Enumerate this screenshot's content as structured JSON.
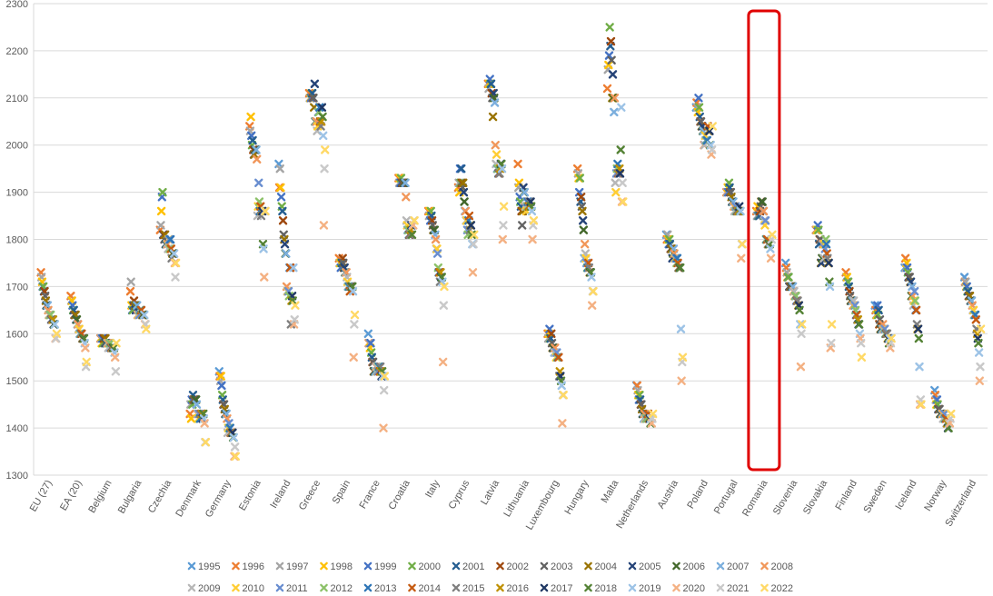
{
  "chart_data": {
    "type": "scatter",
    "marker": "x",
    "title": "",
    "xlabel": "",
    "ylabel": "",
    "ylim": [
      1300,
      2300
    ],
    "yticks": [
      1300,
      1400,
      1500,
      1600,
      1700,
      1800,
      1900,
      2000,
      2100,
      2200,
      2300
    ],
    "grid": true,
    "legend_position": "bottom",
    "highlighted_category": "Romania",
    "highlight_color": "#e00000",
    "categories": [
      "EU (27)",
      "EA (20)",
      "Belgium",
      "Bulgaria",
      "Czechia",
      "Denmark",
      "Germany",
      "Estonia",
      "Ireland",
      "Greece",
      "Spain",
      "France",
      "Croatia",
      "Italy",
      "Cyprus",
      "Latvia",
      "Lithuania",
      "Luxembourg",
      "Hungary",
      "Malta",
      "Netherlands",
      "Austria",
      "Poland",
      "Portugal",
      "Romania",
      "Slovenia",
      "Slovakia",
      "Finland",
      "Sweden",
      "Iceland",
      "Norway",
      "Switzerland"
    ],
    "series": [
      {
        "name": "1995",
        "color": "#5b9bd5",
        "values": [
          null,
          null,
          null,
          null,
          null,
          null,
          1520,
          null,
          1960,
          null,
          null,
          1600,
          null,
          null,
          null,
          null,
          null,
          null,
          null,
          null,
          1490,
          1810,
          2080,
          null,
          null,
          1750,
          null,
          null,
          1660,
          1740,
          1480,
          1720
        ]
      },
      {
        "name": "1996",
        "color": "#ed7d31",
        "values": [
          1730,
          1680,
          1590,
          1690,
          1820,
          1430,
          1510,
          2040,
          1910,
          2110,
          1760,
          1580,
          1930,
          1860,
          1910,
          2130,
          1960,
          1600,
          1950,
          2120,
          1490,
          1800,
          2090,
          1900,
          1860,
          1740,
          1820,
          1730,
          1650,
          1760,
          1470,
          1710
        ]
      },
      {
        "name": "1997",
        "color": "#a5a5a5",
        "values": [
          1720,
          1670,
          1590,
          1710,
          1830,
          1450,
          1500,
          2030,
          1950,
          2100,
          1750,
          1580,
          1920,
          1850,
          1920,
          2120,
          1910,
          1590,
          1940,
          2160,
          1480,
          1810,
          2080,
          1900,
          1850,
          1730,
          1820,
          1720,
          1640,
          1740,
          1460,
          1710
        ]
      },
      {
        "name": "1998",
        "color": "#ffc000",
        "values": [
          1710,
          1670,
          1580,
          1660,
          1860,
          1420,
          1510,
          2060,
          1910,
          2100,
          1750,
          1570,
          1930,
          1860,
          1900,
          2130,
          1920,
          1600,
          1930,
          2170,
          1470,
          1800,
          2070,
          1910,
          1870,
          1720,
          1820,
          1720,
          1640,
          1750,
          1450,
          1700
        ]
      },
      {
        "name": "1999",
        "color": "#4472c4",
        "values": [
          1700,
          1660,
          1590,
          1650,
          1890,
          1460,
          1490,
          2020,
          1890,
          2100,
          1740,
          1580,
          1920,
          1840,
          1950,
          2140,
          1890,
          1610,
          1900,
          2190,
          1460,
          1790,
          2100,
          1900,
          1850,
          1720,
          1830,
          1710,
          1660,
          1740,
          1460,
          1700
        ]
      },
      {
        "name": "2000",
        "color": "#70ad47",
        "values": [
          1700,
          1650,
          1580,
          1650,
          1900,
          1450,
          1470,
          2000,
          1870,
          2110,
          1750,
          1560,
          1930,
          1860,
          1920,
          2130,
          1880,
          1590,
          1930,
          2250,
          1470,
          1800,
          2080,
          1920,
          1850,
          1720,
          1820,
          1710,
          1640,
          1730,
          1450,
          1690
        ]
      },
      {
        "name": "2001",
        "color": "#255e91",
        "values": [
          1690,
          1650,
          1590,
          1660,
          1810,
          1470,
          1460,
          2010,
          1860,
          2110,
          1750,
          1550,
          1920,
          1850,
          1950,
          2130,
          1870,
          1590,
          1880,
          2210,
          1460,
          1790,
          2060,
          1910,
          1850,
          1700,
          1790,
          1700,
          1650,
          1720,
          1440,
          1690
        ]
      },
      {
        "name": "2002",
        "color": "#9e480e",
        "values": [
          1690,
          1640,
          1590,
          1670,
          1810,
          1460,
          1450,
          1990,
          1840,
          2100,
          1760,
          1540,
          1920,
          1840,
          1920,
          2110,
          1860,
          1600,
          1890,
          2220,
          1450,
          1780,
          2050,
          1900,
          1860,
          1700,
          1800,
          1690,
          1620,
          1720,
          1440,
          1680
        ]
      },
      {
        "name": "2003",
        "color": "#636363",
        "values": [
          1680,
          1640,
          1580,
          1660,
          1800,
          1460,
          1450,
          1980,
          1810,
          2100,
          1750,
          1540,
          1920,
          1830,
          1910,
          2100,
          1830,
          1580,
          1870,
          2180,
          1450,
          1780,
          2050,
          1900,
          1870,
          1700,
          1800,
          1680,
          1630,
          1720,
          1440,
          1680
        ]
      },
      {
        "name": "2004",
        "color": "#997300",
        "values": [
          1670,
          1640,
          1590,
          1660,
          1810,
          1460,
          1440,
          1980,
          1800,
          2080,
          1740,
          1520,
          1920,
          1820,
          1920,
          2060,
          1860,
          1570,
          1860,
          2100,
          1440,
          1780,
          2040,
          1890,
          1880,
          1700,
          1750,
          1670,
          1610,
          1710,
          1430,
          1680
        ]
      },
      {
        "name": "2005",
        "color": "#264478",
        "values": [
          1660,
          1630,
          1580,
          1650,
          1790,
          1460,
          1430,
          1990,
          1790,
          2130,
          1740,
          1520,
          1920,
          1820,
          1900,
          2110,
          1910,
          1570,
          1840,
          2150,
          1430,
          1760,
          2040,
          1880,
          1880,
          1700,
          1750,
          1670,
          1610,
          1710,
          1430,
          1670
        ]
      },
      {
        "name": "2006",
        "color": "#43682b",
        "values": [
          1660,
          1630,
          1580,
          1660,
          1790,
          1460,
          1430,
          1990,
          1770,
          2050,
          1730,
          1520,
          1920,
          1820,
          1880,
          2100,
          1900,
          1570,
          1820,
          2100,
          1430,
          1770,
          2030,
          1880,
          1880,
          1700,
          1760,
          1670,
          1610,
          1680,
          1430,
          1670
        ]
      },
      {
        "name": "2007",
        "color": "#7cafdd",
        "values": [
          1660,
          1620,
          1580,
          1660,
          1790,
          1450,
          1430,
          1990,
          1770,
          2050,
          1730,
          1520,
          1920,
          1810,
          1860,
          2090,
          1900,
          1560,
          1760,
          2070,
          1420,
          1780,
          2030,
          1880,
          1860,
          1700,
          1790,
          1670,
          1610,
          1700,
          1430,
          1670
        ]
      },
      {
        "name": "2008",
        "color": "#f1975a",
        "values": [
          1650,
          1620,
          1580,
          1640,
          1790,
          1430,
          1420,
          1970,
          1700,
          2050,
          1730,
          1530,
          1890,
          1800,
          1860,
          2000,
          1870,
          1570,
          1790,
          2100,
          1430,
          1770,
          2000,
          1870,
          1860,
          1690,
          1790,
          1660,
          1620,
          1680,
          1430,
          1660
        ]
      },
      {
        "name": "2009",
        "color": "#b7b7b7",
        "values": [
          1640,
          1610,
          1570,
          1640,
          1780,
          1430,
          1390,
          1850,
          1690,
          2030,
          1720,
          1530,
          1840,
          1780,
          1840,
          1960,
          1870,
          1560,
          1770,
          1920,
          1420,
          1760,
          2000,
          1860,
          1840,
          1690,
          1760,
          1670,
          1610,
          1660,
          1420,
          1650
        ]
      },
      {
        "name": "2010",
        "color": "#ffcd33",
        "values": [
          1640,
          1610,
          1580,
          1640,
          1800,
          1420,
          1400,
          1870,
          1690,
          2040,
          1710,
          1520,
          1830,
          1780,
          1840,
          1980,
          1860,
          1550,
          1760,
          1900,
          1420,
          1760,
          2020,
          1870,
          1830,
          1680,
          1790,
          1660,
          1610,
          1670,
          1430,
          1650
        ]
      },
      {
        "name": "2011",
        "color": "#698ed0",
        "values": [
          1640,
          1600,
          1580,
          1640,
          1800,
          1430,
          1410,
          1920,
          1690,
          2070,
          1700,
          1520,
          1820,
          1770,
          1820,
          1950,
          1880,
          1560,
          1750,
          1940,
          1420,
          1760,
          2010,
          1870,
          1840,
          1680,
          1780,
          1660,
          1610,
          1690,
          1430,
          1640
        ]
      },
      {
        "name": "2012",
        "color": "#8cc168",
        "values": [
          1640,
          1600,
          1580,
          1650,
          1780,
          1420,
          1400,
          1880,
          1680,
          2070,
          1700,
          1530,
          1820,
          1740,
          1810,
          1950,
          1870,
          1550,
          1740,
          1950,
          1420,
          1750,
          2010,
          1860,
          1800,
          1680,
          1800,
          1650,
          1600,
          1670,
          1420,
          1640
        ]
      },
      {
        "name": "2013",
        "color": "#2e75b6",
        "values": [
          1630,
          1600,
          1570,
          1650,
          1800,
          1420,
          1400,
          1860,
          1740,
          2080,
          1700,
          1530,
          1810,
          1730,
          1840,
          1940,
          1880,
          1550,
          1740,
          1960,
          1430,
          1760,
          2010,
          1860,
          1800,
          1670,
          1790,
          1640,
          1600,
          1650,
          1420,
          1640
        ]
      },
      {
        "name": "2014",
        "color": "#c55a11",
        "values": [
          1630,
          1600,
          1570,
          1650,
          1780,
          1430,
          1390,
          1870,
          1740,
          2050,
          1690,
          1520,
          1810,
          1730,
          1850,
          1940,
          1870,
          1550,
          1750,
          1940,
          1430,
          1750,
          2040,
          1860,
          1800,
          1670,
          1770,
          1640,
          1600,
          1650,
          1420,
          1630
        ]
      },
      {
        "name": "2015",
        "color": "#7f7f7f",
        "values": [
          1630,
          1590,
          1570,
          1640,
          1760,
          1430,
          1390,
          1850,
          1620,
          2040,
          1700,
          1530,
          1810,
          1710,
          1820,
          1940,
          1880,
          1510,
          1740,
          1940,
          1420,
          1740,
          2030,
          1860,
          1790,
          1670,
          1760,
          1630,
          1600,
          1620,
          1410,
          1610
        ]
      },
      {
        "name": "2016",
        "color": "#bf9000",
        "values": [
          1630,
          1590,
          1570,
          1640,
          1770,
          1430,
          1390,
          1860,
          1670,
          2050,
          1700,
          1520,
          1820,
          1730,
          1830,
          1950,
          1870,
          1520,
          1730,
          1950,
          1420,
          1740,
          2030,
          1860,
          1790,
          1660,
          1750,
          1630,
          1590,
          1610,
          1410,
          1600
        ]
      },
      {
        "name": "2017",
        "color": "#203864",
        "values": [
          1620,
          1590,
          1570,
          1640,
          1770,
          1420,
          1390,
          1860,
          1680,
          2080,
          1700,
          1510,
          1830,
          1720,
          1830,
          1960,
          1880,
          1510,
          1730,
          1940,
          1420,
          1740,
          2030,
          1870,
          1790,
          1660,
          1750,
          1620,
          1590,
          1610,
          1400,
          1590
        ]
      },
      {
        "name": "2018",
        "color": "#548235",
        "values": [
          1620,
          1590,
          1570,
          1640,
          1770,
          1430,
          1380,
          1790,
          1670,
          2060,
          1700,
          1520,
          1810,
          1720,
          1810,
          1960,
          1870,
          1500,
          1730,
          1990,
          1410,
          1740,
          2000,
          1860,
          1790,
          1650,
          1710,
          1620,
          1580,
          1590,
          1400,
          1580
        ]
      },
      {
        "name": "2019",
        "color": "#9dc3e6",
        "values": [
          1620,
          1580,
          1560,
          1640,
          1770,
          1420,
          1380,
          1780,
          1740,
          2020,
          1690,
          1510,
          1830,
          1710,
          1790,
          1950,
          1860,
          1490,
          1720,
          2080,
          1420,
          1610,
          2000,
          1860,
          1780,
          1620,
          1700,
          1600,
          1590,
          1530,
          1410,
          1560
        ]
      },
      {
        "name": "2020",
        "color": "#f4b183",
        "values": [
          1590,
          1570,
          1550,
          1620,
          1750,
          1410,
          1340,
          1720,
          1620,
          1830,
          1550,
          1400,
          1830,
          1540,
          1730,
          1800,
          1800,
          1410,
          1660,
          1880,
          1410,
          1500,
          1980,
          1760,
          1760,
          1530,
          1570,
          1590,
          1570,
          1450,
          1410,
          1500
        ]
      },
      {
        "name": "2021",
        "color": "#c9c9c9",
        "values": [
          1590,
          1530,
          1520,
          1620,
          1720,
          1370,
          1360,
          1860,
          1630,
          1950,
          1620,
          1480,
          1840,
          1660,
          1790,
          1830,
          1830,
          1470,
          1690,
          1920,
          1420,
          1540,
          1990,
          1790,
          1800,
          1600,
          1580,
          1580,
          1580,
          1460,
          1420,
          1530
        ]
      },
      {
        "name": "2022",
        "color": "#ffd966",
        "values": [
          1600,
          1540,
          1580,
          1610,
          1750,
          1370,
          1340,
          1860,
          1660,
          1990,
          1640,
          1510,
          1840,
          1700,
          1810,
          1870,
          1840,
          1470,
          1690,
          1880,
          1430,
          1550,
          2040,
          1790,
          1810,
          1620,
          1620,
          1550,
          1590,
          1450,
          1430,
          1610
        ]
      }
    ]
  }
}
